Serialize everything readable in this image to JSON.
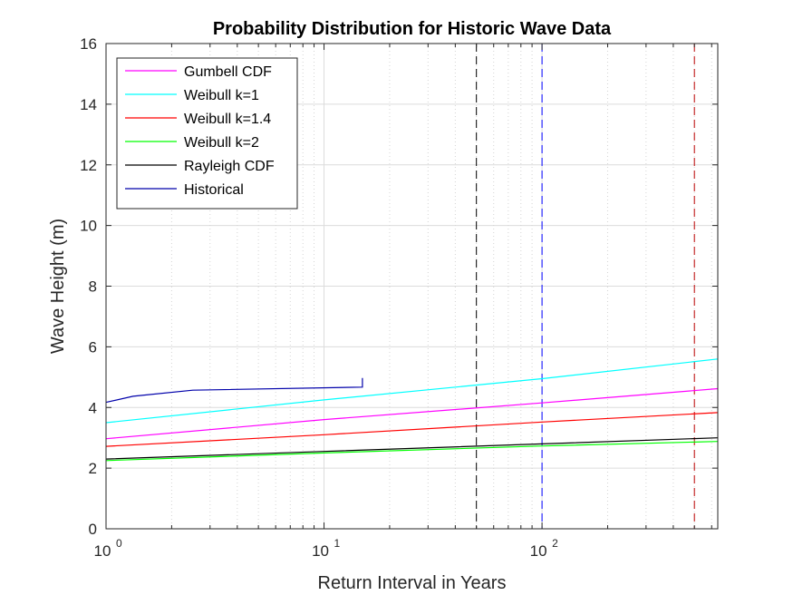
{
  "chart_data": {
    "type": "line",
    "title": "Probability Distribution for Historic Wave Data",
    "xlabel": "Return Interval in Years",
    "ylabel": "Wave Height (m)",
    "xscale": "log",
    "xlim": [
      1,
      640
    ],
    "ylim": [
      0,
      16
    ],
    "x_ticks": [
      {
        "value": 1,
        "base": "10",
        "exp": "0"
      },
      {
        "value": 10,
        "base": "10",
        "exp": "1"
      },
      {
        "value": 100,
        "base": "10",
        "exp": "2"
      }
    ],
    "y_ticks": [
      {
        "value": 0,
        "label": "0"
      },
      {
        "value": 2,
        "label": "2"
      },
      {
        "value": 4,
        "label": "4"
      },
      {
        "value": 6,
        "label": "6"
      },
      {
        "value": 8,
        "label": "8"
      },
      {
        "value": 10,
        "label": "10"
      },
      {
        "value": 12,
        "label": "12"
      },
      {
        "value": 14,
        "label": "14"
      },
      {
        "value": 16,
        "label": "16"
      }
    ],
    "grid": true,
    "minor_grid_x": true,
    "legend_position": "top-left",
    "series": [
      {
        "name": "Gumbell CDF",
        "color": "#ff00ff",
        "x": [
          1,
          10,
          100,
          640
        ],
        "y": [
          2.97,
          3.6,
          4.15,
          4.62
        ]
      },
      {
        "name": "Weibull k=1",
        "color": "#00ffff",
        "x": [
          1,
          10,
          100,
          640
        ],
        "y": [
          3.5,
          4.25,
          4.95,
          5.6
        ]
      },
      {
        "name": "Weibull k=1.4",
        "color": "#ff0000",
        "x": [
          1,
          10,
          100,
          640
        ],
        "y": [
          2.72,
          3.1,
          3.52,
          3.83
        ]
      },
      {
        "name": "Weibull k=2",
        "color": "#00ff00",
        "x": [
          1,
          10,
          100,
          640
        ],
        "y": [
          2.25,
          2.5,
          2.73,
          2.88
        ]
      },
      {
        "name": "Rayleigh CDF",
        "color": "#000000",
        "x": [
          1,
          10,
          100,
          640
        ],
        "y": [
          2.3,
          2.55,
          2.8,
          3.0
        ]
      },
      {
        "name": "Historical",
        "color": "#0000aa",
        "x": [
          1,
          1.33,
          2.5,
          15,
          15
        ],
        "y": [
          4.17,
          4.37,
          4.57,
          4.67,
          4.97
        ]
      }
    ],
    "reference_lines": [
      {
        "x": 50,
        "color": "#000000",
        "style": "dashed"
      },
      {
        "x": 100,
        "color": "#0000ff",
        "style": "dashed"
      },
      {
        "x": 500,
        "color": "#bb0000",
        "style": "dashed"
      }
    ]
  }
}
